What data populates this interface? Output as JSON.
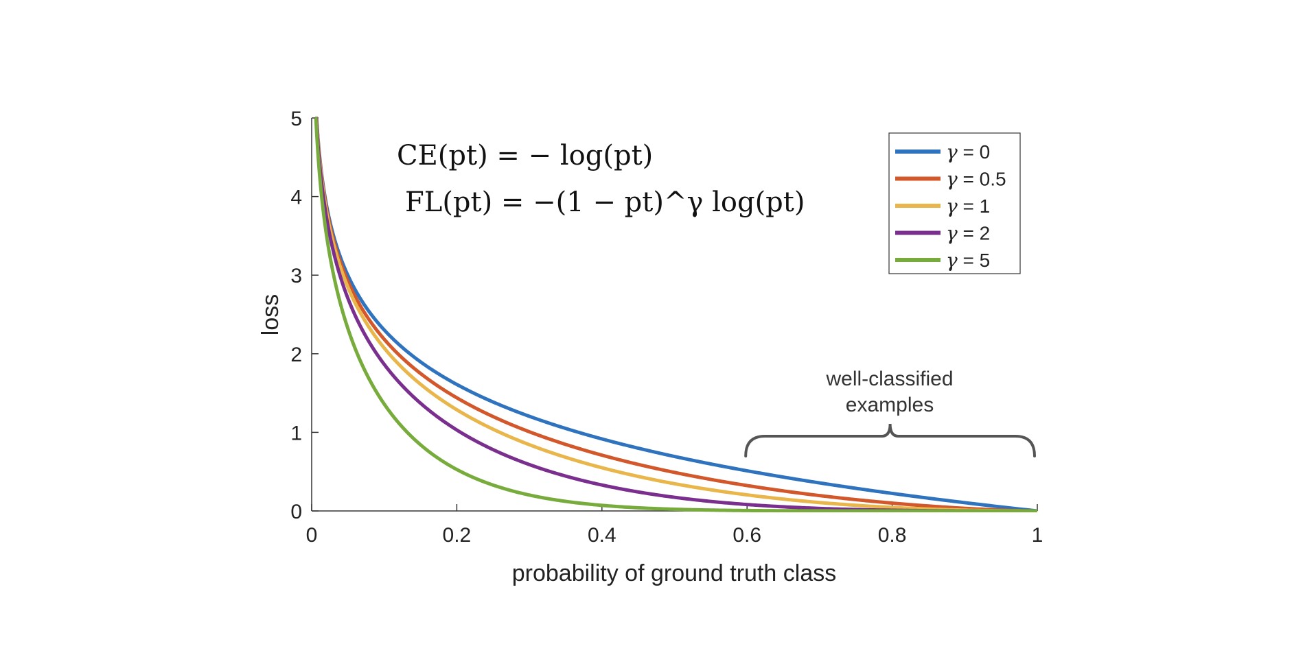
{
  "chart_data": {
    "type": "line",
    "title": "",
    "xlabel": "probability of ground truth class",
    "ylabel": "loss",
    "xlim": [
      0,
      1
    ],
    "ylim": [
      0,
      5
    ],
    "xticks": [
      0,
      0.2,
      0.4,
      0.6,
      0.8,
      1
    ],
    "xtick_labels": [
      "0",
      "0.2",
      "0.4",
      "0.6",
      "0.8",
      "1"
    ],
    "yticks": [
      0,
      1,
      2,
      3,
      4,
      5
    ],
    "ytick_labels": [
      "0",
      "1",
      "2",
      "3",
      "4",
      "5"
    ],
    "grid": false,
    "legend_position": "top-right",
    "function": "FL(p) = -(1-p)^gamma * log(p)",
    "series": [
      {
        "name": "γ = 0",
        "gamma": 0,
        "gamma_label": "γ",
        "value_label": " = 0",
        "color": "#2f72bd"
      },
      {
        "name": "γ = 0.5",
        "gamma": 0.5,
        "gamma_label": "γ",
        "value_label": " = 0.5",
        "color": "#d2572a"
      },
      {
        "name": "γ = 1",
        "gamma": 1,
        "gamma_label": "γ",
        "value_label": " = 1",
        "color": "#e8b64a"
      },
      {
        "name": "γ = 2",
        "gamma": 2,
        "gamma_label": "γ",
        "value_label": " = 2",
        "color": "#7a2f8f"
      },
      {
        "name": "γ = 5",
        "gamma": 5,
        "gamma_label": "γ",
        "value_label": " = 5",
        "color": "#77ac3d"
      }
    ],
    "annotations": {
      "ce_formula": "CE(pt) = − log(pt)",
      "fl_formula": "FL(pt) = −(1 − pt)^γ log(pt)",
      "bracket_line1": "well-classified",
      "bracket_line2": "examples",
      "bracket_range": [
        0.6,
        1.0
      ]
    }
  }
}
